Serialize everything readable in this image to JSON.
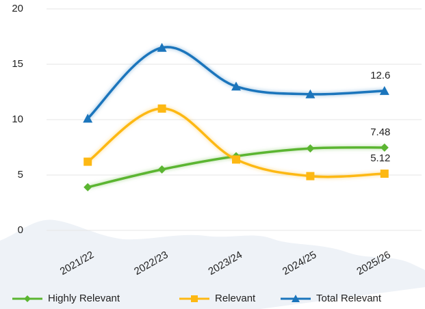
{
  "chart_data": {
    "type": "line",
    "categories": [
      "2021/22",
      "2022/23",
      "2023/24",
      "2024/25",
      "2025/26"
    ],
    "series": [
      {
        "name": "Highly Relevant",
        "color": "#5bb531",
        "marker": "diamond",
        "values": [
          3.9,
          5.5,
          6.7,
          7.4,
          7.48
        ]
      },
      {
        "name": "Relevant",
        "color": "#fdb813",
        "marker": "square",
        "values": [
          6.2,
          11.0,
          6.4,
          4.9,
          5.12
        ]
      },
      {
        "name": "Total Relevant",
        "color": "#1b75bc",
        "marker": "triangle",
        "values": [
          10.1,
          16.5,
          13.0,
          12.3,
          12.6
        ]
      }
    ],
    "ylim": [
      0,
      20
    ],
    "yticks": [
      0,
      5,
      10,
      15,
      20
    ],
    "grid": true,
    "legend": "bottom"
  }
}
